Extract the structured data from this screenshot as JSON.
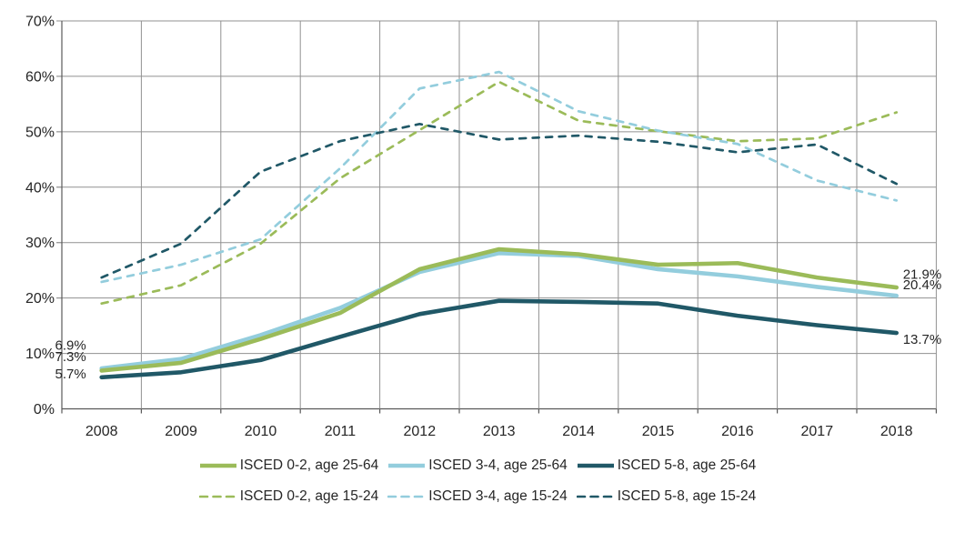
{
  "chart_data": {
    "type": "line",
    "title": "",
    "xlabel": "",
    "ylabel": "",
    "grid": true,
    "legend_position": "bottom",
    "x_categories": [
      "2008",
      "2009",
      "2010",
      "2011",
      "2012",
      "2013",
      "2014",
      "2015",
      "2016",
      "2017",
      "2018"
    ],
    "y_axis": {
      "min": 0,
      "max": 70,
      "ticks": [
        "0%",
        "10%",
        "20%",
        "30%",
        "40%",
        "50%",
        "60%",
        "70%"
      ]
    },
    "series": [
      {
        "name": "ISCED 0-2, age 25-64",
        "color": "#9BBB59",
        "style": "solid",
        "values": [
          6.9,
          8.3,
          12.6,
          17.3,
          25.2,
          28.8,
          27.9,
          26.0,
          26.3,
          23.7,
          21.9
        ],
        "label_start": "6.9%",
        "label_end": "21.9%"
      },
      {
        "name": "ISCED 3-4, age 25-64",
        "color": "#93CDDD",
        "style": "solid",
        "values": [
          7.3,
          9.0,
          13.3,
          18.2,
          24.7,
          28.1,
          27.6,
          25.2,
          23.9,
          22.0,
          20.4
        ],
        "label_start": "7.3%",
        "label_end": "20.4%"
      },
      {
        "name": "ISCED 5-8, age 25-64",
        "color": "#205867",
        "style": "solid",
        "values": [
          5.7,
          6.6,
          8.8,
          13.0,
          17.1,
          19.5,
          19.3,
          19.0,
          16.8,
          15.1,
          13.7
        ],
        "label_start": "5.7%",
        "label_end": "13.7%"
      },
      {
        "name": "ISCED 0-2, age 15-24",
        "color": "#9BBB59",
        "style": "dashed",
        "values": [
          19.0,
          22.3,
          29.8,
          41.6,
          50.3,
          59.0,
          52.0,
          50.1,
          48.3,
          48.8,
          53.5
        ],
        "label_start": null,
        "label_end": null
      },
      {
        "name": "ISCED 3-4, age 15-24",
        "color": "#93CDDD",
        "style": "dashed",
        "values": [
          22.9,
          26.0,
          30.6,
          43.4,
          57.8,
          60.8,
          53.7,
          50.2,
          47.8,
          41.2,
          37.6
        ],
        "label_start": null,
        "label_end": null
      },
      {
        "name": "ISCED 5-8, age 15-24",
        "color": "#205867",
        "style": "dashed",
        "values": [
          23.7,
          29.8,
          42.8,
          48.3,
          51.4,
          48.6,
          49.3,
          48.2,
          46.3,
          47.7,
          40.6
        ],
        "label_start": null,
        "label_end": null
      }
    ],
    "colors": {
      "gridline": "#919191",
      "axis": "#595959",
      "text": "#262626",
      "background": "#ffffff"
    }
  }
}
